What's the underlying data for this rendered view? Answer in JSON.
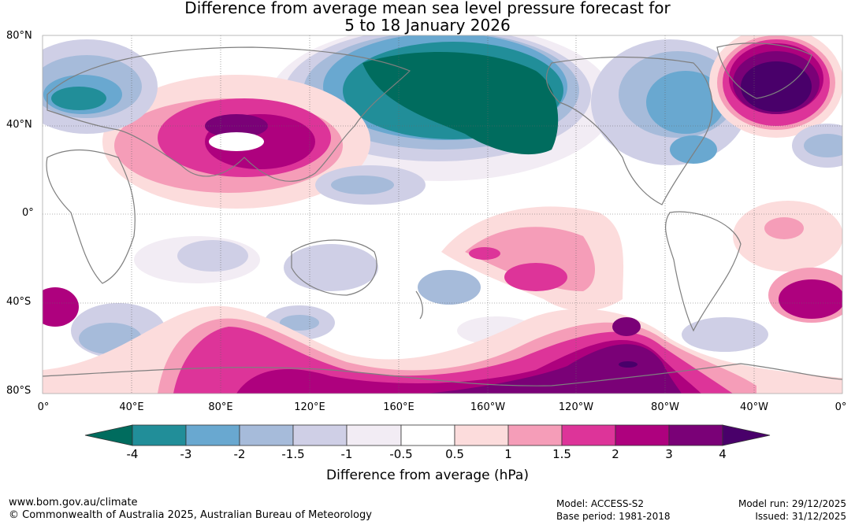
{
  "title_line1": "Difference from average mean sea level pressure forecast for",
  "title_line2": "5 to 18 January 2026",
  "lat_labels": [
    "80°N",
    "40°N",
    "0°",
    "40°S",
    "80°S"
  ],
  "lon_labels": [
    "0°",
    "40°E",
    "80°E",
    "120°E",
    "160°E",
    "160°W",
    "120°W",
    "80°W",
    "40°W",
    "0°"
  ],
  "colorbar": {
    "title": "Difference from average (hPa)",
    "ticks": [
      "-4",
      "-3",
      "-2",
      "-1.5",
      "-1",
      "-0.5",
      "0.5",
      "1",
      "1.5",
      "2",
      "3",
      "4"
    ],
    "colors": {
      "lt_m4": "#006c5e",
      "m4_m3": "#218e99",
      "m3_m2": "#69a8d0",
      "m2_m15": "#a6bbda",
      "m15_m1": "#cfcfe6",
      "m1_m05": "#f2ecf4",
      "m05_05": "#ffffff",
      "p05_1": "#fcdcdc",
      "p1_15": "#f59db8",
      "p15_2": "#dd3499",
      "p2_3": "#ae017e",
      "p3_4": "#7a0177",
      "gt_4": "#49006a"
    }
  },
  "footer": {
    "website": "www.bom.gov.au/climate",
    "copyright": "© Commonwealth of Australia 2025, Australian Bureau of Meteorology",
    "model": "Model: ACCESS-S2",
    "base_period": "Base period: 1981-2018",
    "model_run": "Model run: 29/12/2025",
    "issued": "Issued: 31/12/2025"
  }
}
